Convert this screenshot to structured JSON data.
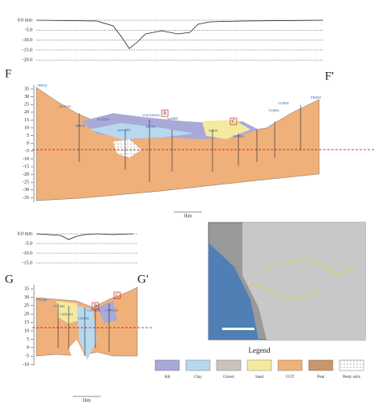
{
  "profile_top": {
    "yticks": [
      "0.0 mm",
      "-5.0",
      "-10.0",
      "-15.0",
      "-20.0"
    ]
  },
  "section_f": {
    "left": "F",
    "right": "F'",
    "yticks": [
      "35",
      "30",
      "25",
      "20",
      "15",
      "10",
      "5",
      "0",
      "-5",
      "-10",
      "-15",
      "-20",
      "-25",
      "-30",
      "-35"
    ],
    "markers": [
      "B",
      "C"
    ],
    "wells": [
      "180034",
      "ACN234",
      "180019",
      "ACN23A",
      "pozzo003",
      "VOLTURNO",
      "APOSS",
      "sm3008",
      "AS028",
      "VL8008",
      "VL8005",
      "VL8004",
      "TN0005"
    ],
    "scale": "1km"
  },
  "profile_bottom": {
    "yticks": [
      "0.0 mm",
      "-5.0",
      "-10.0",
      "-15.0"
    ]
  },
  "section_g": {
    "left": "G",
    "right": "G'",
    "yticks": [
      "35",
      "30",
      "25",
      "20",
      "15",
      "10",
      "5",
      "0",
      "-5",
      "-10"
    ],
    "markers": [
      "B",
      "C"
    ],
    "wells": [
      "VTL008",
      "VTL002",
      "CAPL013",
      "CAPL06",
      "CAPL008",
      "CAPL023"
    ],
    "scale": "1km"
  },
  "legend": {
    "title": "Legend",
    "items": [
      "Silt",
      "Clay",
      "Gravel",
      "Sand",
      "CGT",
      "Peat",
      "Peaty soils"
    ]
  }
}
